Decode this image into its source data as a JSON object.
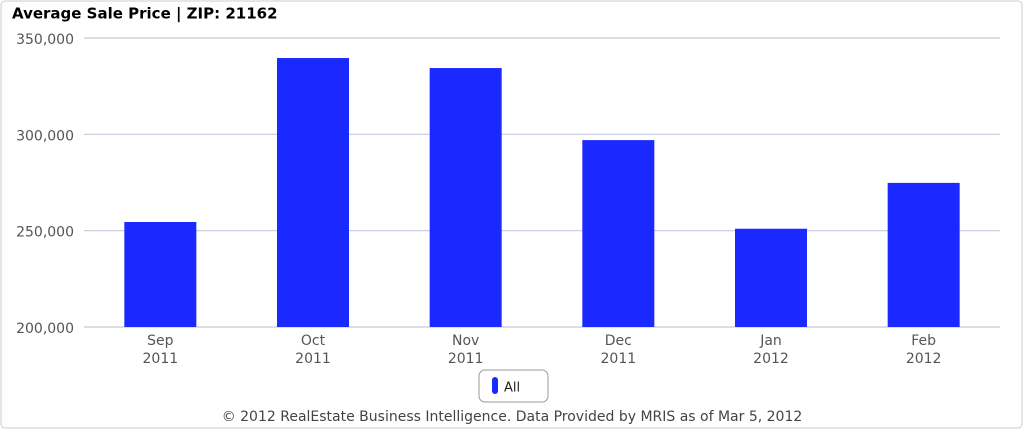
{
  "chart_data": {
    "type": "bar",
    "title": "Average Sale Price | ZIP: 21162",
    "categories": [
      "Sep 2011",
      "Oct 2011",
      "Nov 2011",
      "Dec 2011",
      "Jan 2012",
      "Feb 2012"
    ],
    "series": [
      {
        "name": "All",
        "color": "#1a29ff",
        "values": [
          254500,
          339600,
          334400,
          297000,
          251000,
          274800
        ]
      }
    ],
    "ylim": [
      200000,
      350000
    ],
    "yticks": [
      {
        "value": 200000,
        "label": "200,000"
      },
      {
        "value": 250000,
        "label": "250,000"
      },
      {
        "value": 300000,
        "label": "300,000"
      },
      {
        "value": 350000,
        "label": "350,000"
      }
    ],
    "grid": true,
    "footer": "© 2012 RealEstate Business Intelligence. Data Provided by MRIS as of Mar 5, 2012"
  }
}
